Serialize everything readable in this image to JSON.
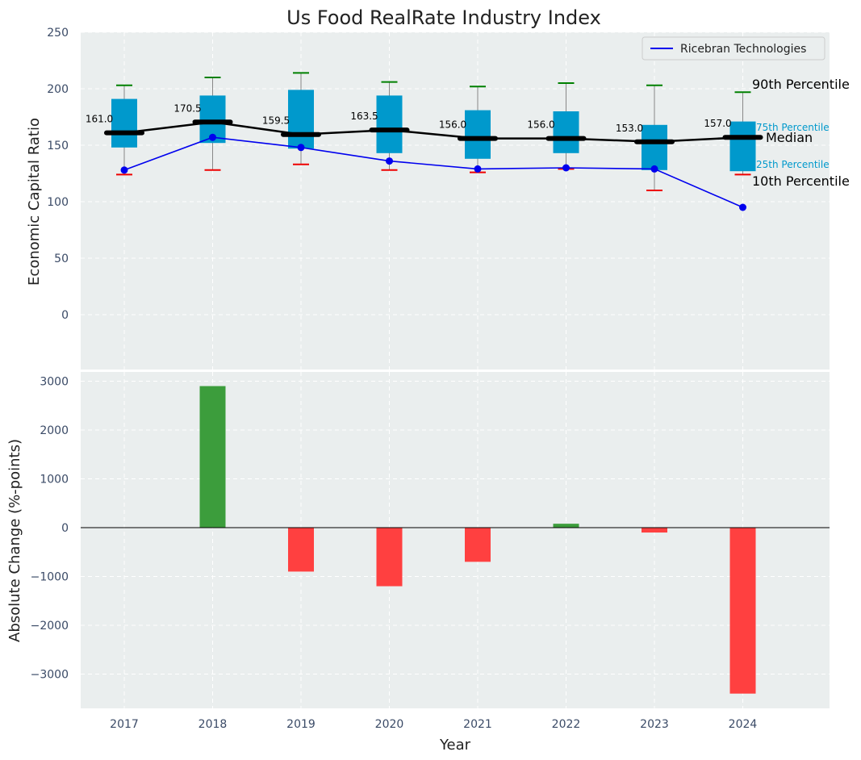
{
  "chart_data": [
    {
      "type": "box",
      "title": "Us Food RealRate Industry Index",
      "xlabel": "",
      "ylabel": "Economic Capital Ratio",
      "ylim": [
        -50,
        250
      ],
      "yticks": [
        0,
        50,
        100,
        150,
        200,
        250
      ],
      "categories": [
        "2017",
        "2018",
        "2019",
        "2020",
        "2021",
        "2022",
        "2023",
        "2024"
      ],
      "boxes": [
        {
          "year": "2017",
          "p10": 124,
          "p25": 148,
          "median": 161.0,
          "p75": 191,
          "p90": 203
        },
        {
          "year": "2018",
          "p10": 128,
          "p25": 152,
          "median": 170.5,
          "p75": 194,
          "p90": 210
        },
        {
          "year": "2019",
          "p10": 133,
          "p25": 147,
          "median": 159.5,
          "p75": 199,
          "p90": 214
        },
        {
          "year": "2020",
          "p10": 128,
          "p25": 143,
          "median": 163.5,
          "p75": 194,
          "p90": 206
        },
        {
          "year": "2021",
          "p10": 126,
          "p25": 138,
          "median": 156.0,
          "p75": 181,
          "p90": 202
        },
        {
          "year": "2022",
          "p10": 129,
          "p25": 143,
          "median": 156.0,
          "p75": 180,
          "p90": 205
        },
        {
          "year": "2023",
          "p10": 110,
          "p25": 128,
          "median": 153.0,
          "p75": 168,
          "p90": 203
        },
        {
          "year": "2024",
          "p10": 124,
          "p25": 127,
          "median": 157.0,
          "p75": 171,
          "p90": 197
        }
      ],
      "median_labels": [
        "161.0",
        "170.5",
        "159.5",
        "163.5",
        "156.0",
        "156.0",
        "153.0",
        "157.0"
      ],
      "company_series": {
        "name": "Ricebran Technologies",
        "values": [
          128,
          157,
          148,
          136,
          129,
          130,
          129,
          95
        ]
      },
      "legend": {
        "entries": [
          "Ricebran Technologies"
        ],
        "placement": "top-right"
      },
      "annotations": {
        "p90": "90th Percentile",
        "p75": "75th Percentile",
        "median": "Median",
        "p25": "25th Percentile",
        "p10": "10th Percentile"
      },
      "grid": true,
      "colors": {
        "box": "#0099cc",
        "median": "#000000",
        "company": "#0000ee",
        "p90_cap": "#008000",
        "p10_cap": "#ee0000",
        "background": "#eaeeee"
      }
    },
    {
      "type": "bar",
      "title": "",
      "xlabel": "Year",
      "ylabel": "Absolute Change (%-points)",
      "ylim": [
        -3700,
        3300
      ],
      "yticks": [
        -3000,
        -2000,
        -1000,
        0,
        1000,
        2000,
        3000
      ],
      "ytick_labels": [
        "−3000",
        "−2000",
        "−1000",
        "0",
        "1000",
        "2000",
        "3000"
      ],
      "categories": [
        "2017",
        "2018",
        "2019",
        "2020",
        "2021",
        "2022",
        "2023",
        "2024"
      ],
      "values": [
        0,
        2900,
        -900,
        -1200,
        -700,
        80,
        -100,
        -3400
      ],
      "grid": true,
      "colors": {
        "positive": "#3c9d3c",
        "negative": "#ff4040"
      }
    }
  ]
}
